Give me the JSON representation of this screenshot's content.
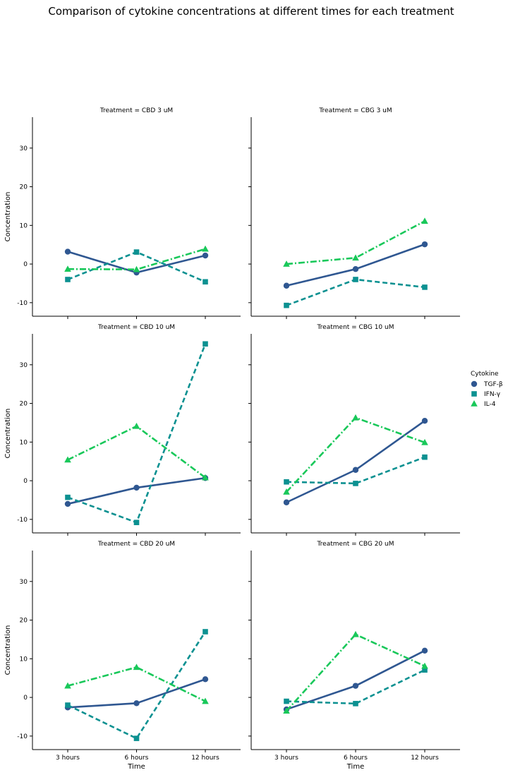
{
  "title": "Comparison of cytokine concentrations at different times for each treatment",
  "chart_data": {
    "type": "line",
    "title": "Comparison of cytokine concentrations at different times for each treatment",
    "xlabel": "Time",
    "ylabel": "Concentration",
    "categories": [
      "3 hours",
      "6 hours",
      "12 hours"
    ],
    "ylim": [
      -13.5,
      38
    ],
    "yticks": [
      -10,
      0,
      10,
      20,
      30
    ],
    "grid": false,
    "legend": {
      "title": "Cytokine",
      "placement": "center-right",
      "entries": [
        "TGF-β",
        "IFN-γ",
        "IL-4"
      ]
    },
    "series_styles": [
      {
        "name": "TGF-β",
        "color": "#2f5791",
        "marker": "circle",
        "dash": "solid"
      },
      {
        "name": "IFN-γ",
        "color": "#0c9191",
        "marker": "square",
        "dash": "dashed"
      },
      {
        "name": "IL-4",
        "color": "#19c85a",
        "marker": "triangle",
        "dash": "dashdot"
      }
    ],
    "panels": [
      {
        "title": "Treatment = CBD 3 uM",
        "series": [
          {
            "name": "TGF-β",
            "values": [
              3.2,
              -2.2,
              2.2
            ]
          },
          {
            "name": "IFN-γ",
            "values": [
              -4.0,
              3.1,
              -4.6
            ]
          },
          {
            "name": "IL-4",
            "values": [
              -1.3,
              -1.4,
              3.9
            ]
          }
        ]
      },
      {
        "title": "Treatment = CBG 3 uM",
        "series": [
          {
            "name": "TGF-β",
            "values": [
              -5.6,
              -1.3,
              5.1
            ]
          },
          {
            "name": "IFN-γ",
            "values": [
              -10.7,
              -4.0,
              -6.0
            ]
          },
          {
            "name": "IL-4",
            "values": [
              0.0,
              1.6,
              11.1
            ]
          }
        ]
      },
      {
        "title": "Treatment = CBD 10 uM",
        "series": [
          {
            "name": "TGF-β",
            "values": [
              -6.0,
              -1.8,
              0.7
            ]
          },
          {
            "name": "IFN-γ",
            "values": [
              -4.3,
              -10.8,
              35.4
            ]
          },
          {
            "name": "IL-4",
            "values": [
              5.4,
              14.1,
              0.8
            ]
          }
        ]
      },
      {
        "title": "Treatment = CBG 10 uM",
        "series": [
          {
            "name": "TGF-β",
            "values": [
              -5.6,
              2.8,
              15.5
            ]
          },
          {
            "name": "IFN-γ",
            "values": [
              -0.3,
              -0.7,
              6.1
            ]
          },
          {
            "name": "IL-4",
            "values": [
              -2.9,
              16.3,
              9.9
            ]
          }
        ]
      },
      {
        "title": "Treatment = CBD 20 uM",
        "series": [
          {
            "name": "TGF-β",
            "values": [
              -2.6,
              -1.5,
              4.7
            ]
          },
          {
            "name": "IFN-γ",
            "values": [
              -2.0,
              -10.6,
              17.0
            ]
          },
          {
            "name": "IL-4",
            "values": [
              3.0,
              7.8,
              -1.0
            ]
          }
        ]
      },
      {
        "title": "Treatment = CBG 20 uM",
        "series": [
          {
            "name": "TGF-β",
            "values": [
              -3.1,
              3.0,
              12.1
            ]
          },
          {
            "name": "IFN-γ",
            "values": [
              -1.0,
              -1.6,
              7.1
            ]
          },
          {
            "name": "IL-4",
            "values": [
              -3.5,
              16.3,
              8.1
            ]
          }
        ]
      }
    ]
  }
}
